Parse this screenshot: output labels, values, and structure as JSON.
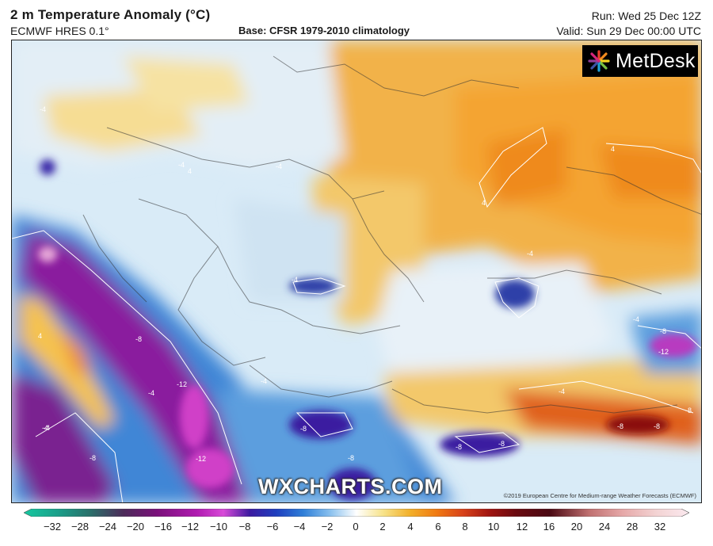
{
  "header": {
    "title": "2 m Temperature Anomaly (°C)",
    "model": "ECMWF HRES 0.1°",
    "base": "Base: CFSR 1979-2010 climatology",
    "run": "Run: Wed 25 Dec 12Z",
    "valid": "Valid: Sun 29 Dec 00:00 UTC"
  },
  "logo": {
    "text": "MetDesk"
  },
  "watermark": "WXCHARTS.COM",
  "copyright": "©2019 European Centre for Medium-range Weather Forecasts (ECMWF)",
  "contour_labels": [
    "4",
    "4",
    "-4",
    "-4",
    "-4",
    "-4",
    "4",
    "-4",
    "-4",
    "-4",
    "-8",
    "-12",
    "-8",
    "-12",
    "-4",
    "-8",
    "-8",
    "-8",
    "-8",
    "-8",
    "-4",
    "-8",
    "-12",
    "-4",
    "-4",
    "4",
    "-8",
    "-8"
  ],
  "colorbar": {
    "ticks": [
      "−32",
      "−28",
      "−24",
      "−20",
      "−16",
      "−12",
      "−10",
      "−8",
      "−6",
      "−4",
      "−2",
      "0",
      "2",
      "4",
      "6",
      "8",
      "10",
      "12",
      "16",
      "20",
      "24",
      "28",
      "32"
    ],
    "colors": [
      "#16c8a0",
      "#1aa08a",
      "#2a6f6a",
      "#4d2b5a",
      "#7a107a",
      "#b01ab0",
      "#d84ad8",
      "#3b1aa0",
      "#1e3fbf",
      "#2f7fd8",
      "#88c0ee",
      "#ffffff",
      "#f7e38a",
      "#f2b02a",
      "#f07a12",
      "#d8421a",
      "#a01410",
      "#6a0a10",
      "#4a0812",
      "#c07070",
      "#e6a8a8",
      "#f3d3d3",
      "#fbe9ef"
    ]
  }
}
